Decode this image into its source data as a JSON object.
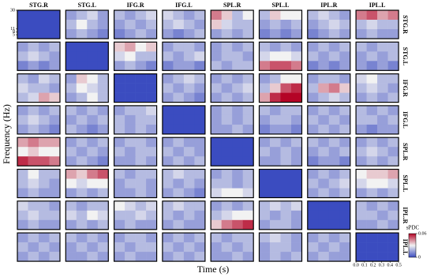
{
  "chart_data": {
    "type": "heatmap-grid",
    "y_label": "Frequency (Hz)",
    "x_label": "Time (s)",
    "col_labels": [
      "STG.R",
      "STG.L",
      "IFG.R",
      "IFG.L",
      "SPL.R",
      "SPL.L",
      "IPL.R",
      "IPL.L"
    ],
    "row_labels": [
      "STG.R",
      "STG.L",
      "IFG.R",
      "IFG.L",
      "SPL.R",
      "SPL.L",
      "IPL.R",
      "IPL.L"
    ],
    "xlim": [
      0,
      0.5
    ],
    "xticks": [
      {
        "value": 0,
        "label": "0.0"
      },
      0.1,
      0.2,
      0.3,
      0.4,
      0.5
    ],
    "ylim": [
      1,
      30
    ],
    "yticks": [
      30,
      11,
      8,
      5
    ],
    "colorbar_label": "sPDC",
    "colorbar_lim": [
      0,
      0.06
    ],
    "colorbar_ticks": [
      0,
      0.06
    ],
    "colormap": [
      "#3b4cc0",
      "#f2f2f2",
      "#b40426"
    ],
    "panels": [
      [
        [
          0,
          0,
          0,
          0,
          0,
          0,
          0,
          0,
          0,
          0,
          0,
          0
        ],
        [
          0.015,
          0.02,
          0.025,
          0.015,
          0.02,
          0.03,
          0.02,
          0.015,
          0.015,
          0.02,
          0.015,
          0.01
        ],
        [
          0.02,
          0.015,
          0.02,
          0.025,
          0.015,
          0.02,
          0.015,
          0.02,
          0.01,
          0.015,
          0.02,
          0.015
        ],
        [
          0.025,
          0.02,
          0.015,
          0.02,
          0.02,
          0.025,
          0.02,
          0.015,
          0.015,
          0.01,
          0.015,
          0.02
        ],
        [
          0.045,
          0.035,
          0.02,
          0.03,
          0.035,
          0.025,
          0.02,
          0.02,
          0.015,
          0.02,
          0.015,
          0.02
        ],
        [
          0.02,
          0.035,
          0.03,
          0.03,
          0.015,
          0.02,
          0.015,
          0.02,
          0.01,
          0.015,
          0.01,
          0.015
        ],
        [
          0.02,
          0.025,
          0.02,
          0.015,
          0.015,
          0.02,
          0.025,
          0.02,
          0.01,
          0.015,
          0.02,
          0.015
        ],
        [
          0.045,
          0.05,
          0.04,
          0.045,
          0.02,
          0.025,
          0.02,
          0.02,
          0.015,
          0.02,
          0.015,
          0.015
        ]
      ],
      [
        [
          0.015,
          0.02,
          0.015,
          0.02,
          0.02,
          0.025,
          0.02,
          0.015,
          0.01,
          0.015,
          0.01,
          0.015
        ],
        [
          0,
          0,
          0,
          0,
          0,
          0,
          0,
          0,
          0,
          0,
          0,
          0
        ],
        [
          0.035,
          0.04,
          0.03,
          0.035,
          0.025,
          0.03,
          0.02,
          0.02,
          0.015,
          0.02,
          0.015,
          0.01
        ],
        [
          0.015,
          0.02,
          0.02,
          0.015,
          0.02,
          0.015,
          0.02,
          0.025,
          0.01,
          0.015,
          0.015,
          0.01
        ],
        [
          0.015,
          0.02,
          0.015,
          0.02,
          0.015,
          0.02,
          0.02,
          0.015,
          0.02,
          0.015,
          0.02,
          0.02
        ],
        [
          0.02,
          0.015,
          0.02,
          0.015,
          0.025,
          0.03,
          0.03,
          0.025,
          0.045,
          0.05,
          0.05,
          0.045
        ],
        [
          0.015,
          0.02,
          0.015,
          0.02,
          0.02,
          0.015,
          0.02,
          0.015,
          0.01,
          0.015,
          0.01,
          0.015
        ],
        [
          0.02,
          0.015,
          0.02,
          0.02,
          0.015,
          0.02,
          0.015,
          0.02,
          0.015,
          0.01,
          0.015,
          0.01
        ]
      ],
      [
        [
          0.02,
          0.015,
          0.025,
          0.02,
          0.025,
          0.02,
          0.02,
          0.015,
          0.02,
          0.025,
          0.04,
          0.035
        ],
        [
          0.015,
          0.035,
          0.03,
          0.02,
          0.02,
          0.03,
          0.025,
          0.02,
          0.015,
          0.02,
          0.03,
          0.02
        ],
        [
          0,
          0,
          0,
          0,
          0,
          0,
          0,
          0,
          0,
          0,
          0,
          0
        ],
        [
          0.015,
          0.02,
          0.025,
          0.02,
          0.02,
          0.015,
          0.02,
          0.015,
          0.015,
          0.02,
          0.015,
          0.01
        ],
        [
          0.015,
          0.02,
          0.015,
          0.02,
          0.02,
          0.015,
          0.02,
          0.025,
          0.015,
          0.02,
          0.015,
          0.02
        ],
        [
          0.015,
          0.02,
          0.03,
          0.03,
          0.02,
          0.035,
          0.05,
          0.055,
          0.04,
          0.055,
          0.06,
          0.06
        ],
        [
          0.015,
          0.02,
          0.02,
          0.015,
          0.02,
          0.04,
          0.045,
          0.035,
          0.015,
          0.02,
          0.025,
          0.02
        ],
        [
          0.025,
          0.03,
          0.02,
          0.02,
          0.02,
          0.025,
          0.02,
          0.015,
          0.015,
          0.02,
          0.015,
          0.02
        ]
      ],
      [
        [
          0.015,
          0.02,
          0.015,
          0.02,
          0.02,
          0.025,
          0.02,
          0.015,
          0.015,
          0.02,
          0.015,
          0.01
        ],
        [
          0.02,
          0.015,
          0.02,
          0.015,
          0.015,
          0.02,
          0.015,
          0.02,
          0.02,
          0.015,
          0.01,
          0.015
        ],
        [
          0.015,
          0.02,
          0.02,
          0.025,
          0.02,
          0.015,
          0.02,
          0.02,
          0.02,
          0.015,
          0.02,
          0.015
        ],
        [
          0,
          0,
          0,
          0,
          0,
          0,
          0,
          0,
          0,
          0,
          0,
          0
        ],
        [
          0.015,
          0.02,
          0.015,
          0.02,
          0.015,
          0.02,
          0.015,
          0.02,
          0.015,
          0.015,
          0.02,
          0.015
        ],
        [
          0.02,
          0.015,
          0.02,
          0.02,
          0.015,
          0.02,
          0.02,
          0.015,
          0.01,
          0.015,
          0.015,
          0.01
        ],
        [
          0.015,
          0.02,
          0.015,
          0.02,
          0.02,
          0.015,
          0.02,
          0.015,
          0.015,
          0.02,
          0.015,
          0.02
        ],
        [
          0.02,
          0.015,
          0.02,
          0.015,
          0.02,
          0.02,
          0.015,
          0.02,
          0.015,
          0.01,
          0.015,
          0.015
        ]
      ],
      [
        [
          0.04,
          0.045,
          0.04,
          0.04,
          0.03,
          0.035,
          0.03,
          0.03,
          0.055,
          0.05,
          0.05,
          0.045
        ],
        [
          0.015,
          0.02,
          0.015,
          0.02,
          0.02,
          0.015,
          0.02,
          0.015,
          0.015,
          0.02,
          0.015,
          0.01
        ],
        [
          0.015,
          0.02,
          0.02,
          0.015,
          0.02,
          0.015,
          0.02,
          0.02,
          0.015,
          0.015,
          0.02,
          0.015
        ],
        [
          0.015,
          0.02,
          0.015,
          0.015,
          0.02,
          0.015,
          0.02,
          0.015,
          0.015,
          0.02,
          0.015,
          0.02
        ],
        [
          0,
          0,
          0,
          0,
          0,
          0,
          0,
          0,
          0,
          0,
          0,
          0
        ],
        [
          0.015,
          0.02,
          0.015,
          0.02,
          0.02,
          0.015,
          0.02,
          0.015,
          0.015,
          0.015,
          0.02,
          0.015
        ],
        [
          0.02,
          0.015,
          0.02,
          0.015,
          0.015,
          0.02,
          0.015,
          0.02,
          0.01,
          0.015,
          0.015,
          0.01
        ],
        [
          0.015,
          0.02,
          0.015,
          0.02,
          0.02,
          0.025,
          0.02,
          0.015,
          0.015,
          0.02,
          0.015,
          0.02
        ]
      ],
      [
        [
          0.02,
          0.03,
          0.02,
          0.02,
          0.02,
          0.025,
          0.02,
          0.015,
          0.015,
          0.02,
          0.015,
          0.015
        ],
        [
          0.04,
          0.035,
          0.045,
          0.05,
          0.03,
          0.025,
          0.03,
          0.03,
          0.015,
          0.02,
          0.015,
          0.02
        ],
        [
          0.02,
          0.015,
          0.02,
          0.02,
          0.015,
          0.02,
          0.02,
          0.015,
          0.015,
          0.015,
          0.02,
          0.015
        ],
        [
          0.02,
          0.025,
          0.02,
          0.02,
          0.02,
          0.015,
          0.02,
          0.015,
          0.015,
          0.02,
          0.015,
          0.01
        ],
        [
          0.015,
          0.02,
          0.015,
          0.02,
          0.02,
          0.02,
          0.015,
          0.02,
          0.025,
          0.03,
          0.03,
          0.025
        ],
        [
          0,
          0,
          0,
          0,
          0,
          0,
          0,
          0,
          0,
          0,
          0,
          0
        ],
        [
          0.015,
          0.02,
          0.015,
          0.02,
          0.02,
          0.015,
          0.02,
          0.025,
          0.015,
          0.02,
          0.015,
          0.02
        ],
        [
          0.03,
          0.035,
          0.035,
          0.04,
          0.025,
          0.03,
          0.03,
          0.025,
          0.015,
          0.02,
          0.015,
          0.02
        ]
      ],
      [
        [
          0.025,
          0.02,
          0.02,
          0.015,
          0.02,
          0.025,
          0.02,
          0.02,
          0.015,
          0.02,
          0.015,
          0.015
        ],
        [
          0.02,
          0.015,
          0.02,
          0.02,
          0.025,
          0.02,
          0.03,
          0.025,
          0.015,
          0.02,
          0.015,
          0.02
        ],
        [
          0.03,
          0.025,
          0.02,
          0.025,
          0.02,
          0.02,
          0.025,
          0.02,
          0.015,
          0.02,
          0.015,
          0.015
        ],
        [
          0.02,
          0.025,
          0.02,
          0.02,
          0.02,
          0.015,
          0.02,
          0.015,
          0.015,
          0.02,
          0.015,
          0.015
        ],
        [
          0.015,
          0.02,
          0.015,
          0.02,
          0.02,
          0.025,
          0.03,
          0.03,
          0.035,
          0.045,
          0.05,
          0.055
        ],
        [
          0.02,
          0.025,
          0.02,
          0.025,
          0.02,
          0.015,
          0.02,
          0.015,
          0.015,
          0.02,
          0.02,
          0.015
        ],
        [
          0,
          0,
          0,
          0,
          0,
          0,
          0,
          0,
          0,
          0,
          0,
          0
        ],
        [
          0.02,
          0.015,
          0.02,
          0.015,
          0.02,
          0.02,
          0.015,
          0.02,
          0.015,
          0.015,
          0.02,
          0.015
        ]
      ],
      [
        [
          0.015,
          0.02,
          0.015,
          0.02,
          0.02,
          0.015,
          0.02,
          0.015,
          0.015,
          0.02,
          0.015,
          0.02
        ],
        [
          0.02,
          0.015,
          0.02,
          0.015,
          0.015,
          0.02,
          0.015,
          0.02,
          0.015,
          0.015,
          0.02,
          0.015
        ],
        [
          0.015,
          0.02,
          0.02,
          0.015,
          0.02,
          0.015,
          0.02,
          0.02,
          0.015,
          0.02,
          0.015,
          0.015
        ],
        [
          0.015,
          0.02,
          0.015,
          0.02,
          0.02,
          0.015,
          0.02,
          0.015,
          0.015,
          0.02,
          0.015,
          0.02
        ],
        [
          0.02,
          0.015,
          0.02,
          0.02,
          0.015,
          0.02,
          0.015,
          0.02,
          0.015,
          0.015,
          0.02,
          0.015
        ],
        [
          0.02,
          0.025,
          0.02,
          0.015,
          0.015,
          0.02,
          0.02,
          0.015,
          0.015,
          0.02,
          0.015,
          0.02
        ],
        [
          0.015,
          0.02,
          0.015,
          0.02,
          0.02,
          0.015,
          0.02,
          0.015,
          0.015,
          0.02,
          0.015,
          0.015
        ],
        [
          0,
          0,
          0,
          0,
          0,
          0,
          0,
          0,
          0,
          0,
          0,
          0
        ]
      ]
    ]
  }
}
